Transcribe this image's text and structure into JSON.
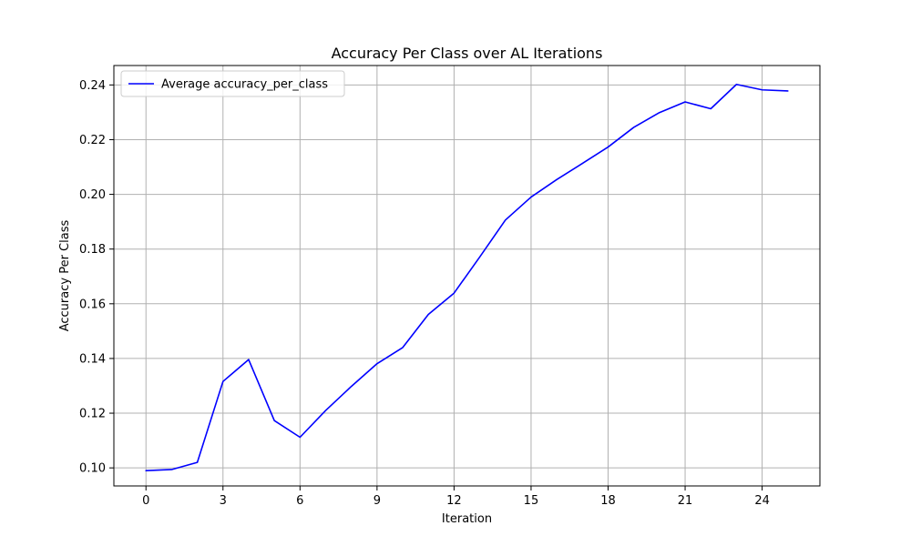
{
  "chart_data": {
    "type": "line",
    "title": "Accuracy Per Class over AL Iterations",
    "xlabel": "Iteration",
    "ylabel": "Accuracy Per Class",
    "xlim": [
      -1.25,
      26.25
    ],
    "ylim": [
      0.0934,
      0.2471
    ],
    "xticks": [
      0,
      3,
      6,
      9,
      12,
      15,
      18,
      21,
      24
    ],
    "yticks": [
      0.1,
      0.12,
      0.14,
      0.16,
      0.18,
      0.2,
      0.22,
      0.24
    ],
    "ytick_labels": [
      "0.10",
      "0.12",
      "0.14",
      "0.16",
      "0.18",
      "0.20",
      "0.22",
      "0.24"
    ],
    "grid": true,
    "legend_position": "top-left",
    "series": [
      {
        "name": "Average accuracy_per_class",
        "color": "#0000ff",
        "x": [
          0,
          1,
          2,
          3,
          4,
          5,
          6,
          7,
          8,
          9,
          10,
          11,
          12,
          13,
          14,
          15,
          16,
          17,
          18,
          19,
          20,
          21,
          22,
          23,
          24,
          25
        ],
        "y": [
          0.099,
          0.0994,
          0.102,
          0.1316,
          0.1396,
          0.1173,
          0.1112,
          0.121,
          0.1298,
          0.1381,
          0.144,
          0.1561,
          0.1639,
          0.1771,
          0.1906,
          0.199,
          0.2054,
          0.2113,
          0.2173,
          0.2245,
          0.2299,
          0.2338,
          0.2313,
          0.2402,
          0.2382,
          0.2378
        ]
      }
    ]
  }
}
